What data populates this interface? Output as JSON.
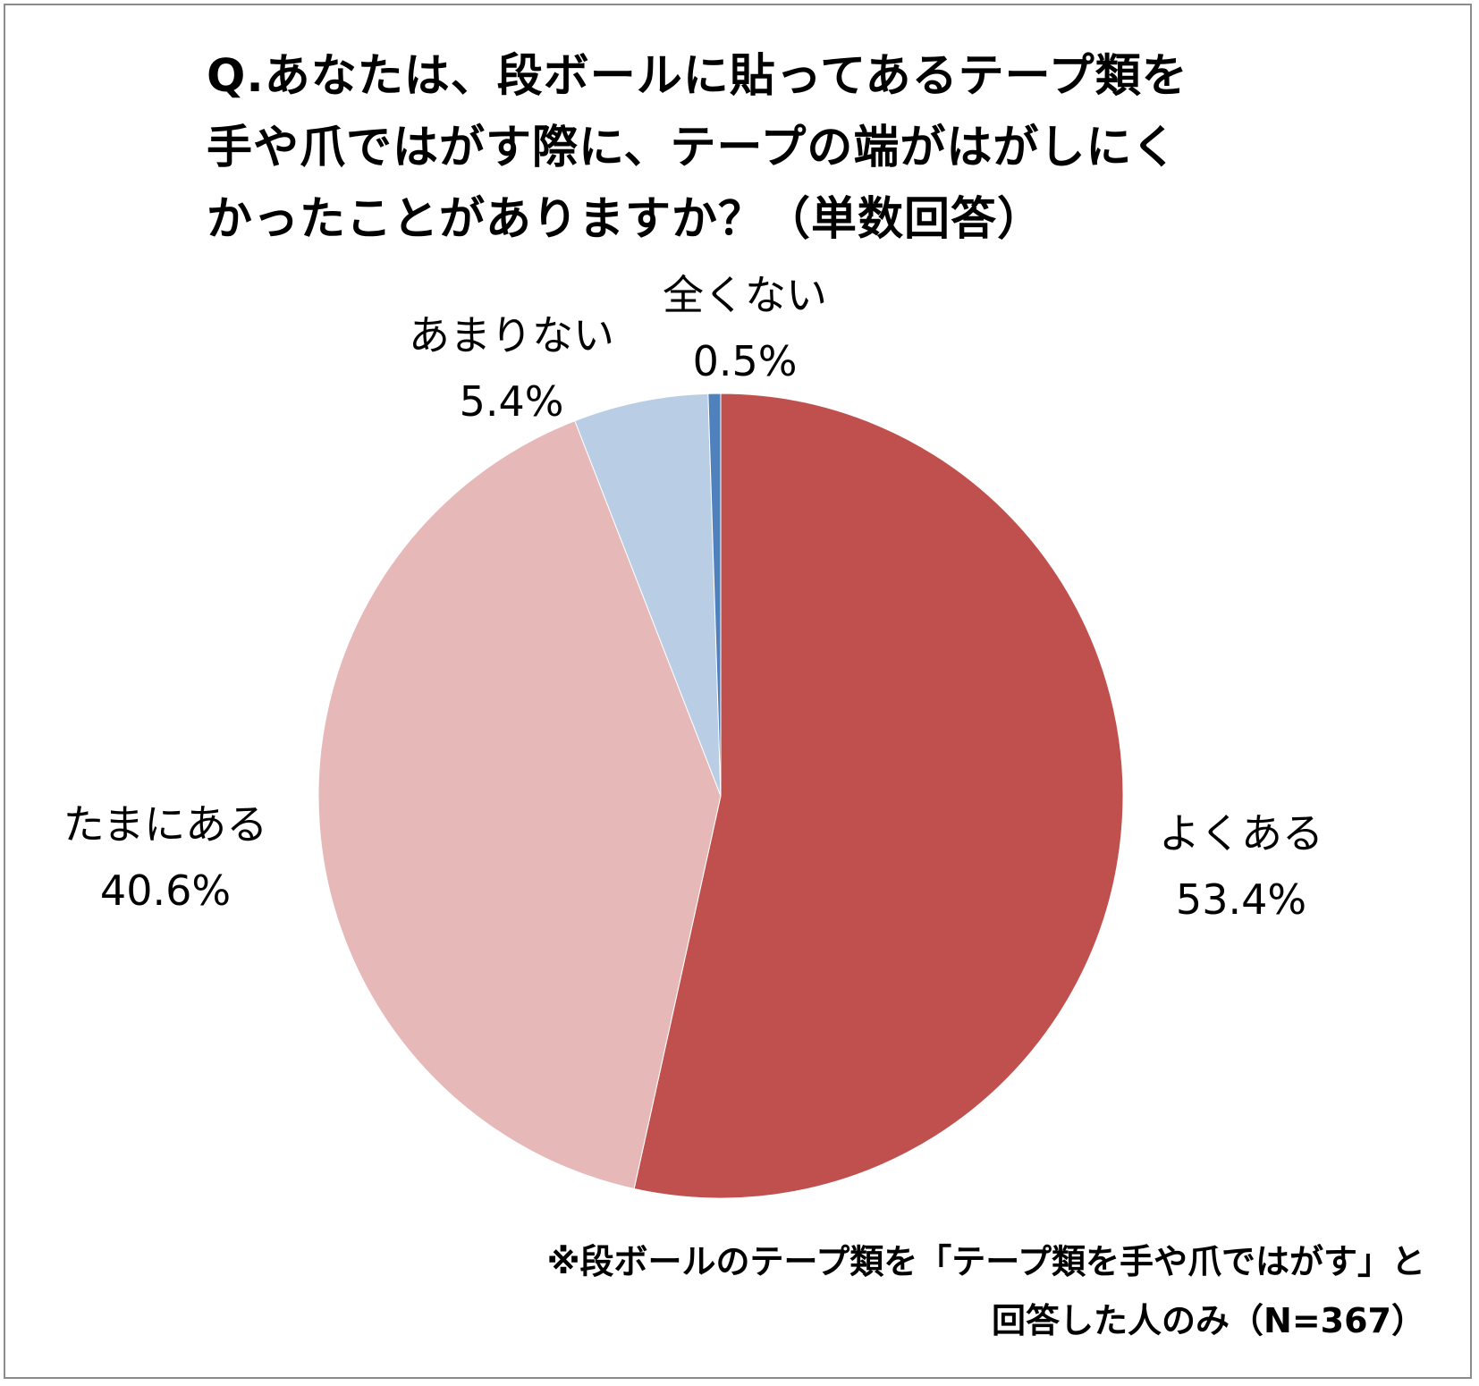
{
  "chart_data": {
    "type": "pie",
    "title_lines": [
      "Q.あなたは、段ボールに貼ってあるテープ類を",
      "手や爪ではがす際に、テープの端がはがしにく",
      "かったことがありますか？（単数回答）"
    ],
    "categories": [
      "よくある",
      "たまにある",
      "あまりない",
      "全くない"
    ],
    "values": [
      53.4,
      40.6,
      5.4,
      0.5
    ],
    "value_labels": [
      "53.4%",
      "40.6%",
      "5.4%",
      "0.5%"
    ],
    "colors": [
      "#c0504d",
      "#e6b9b8",
      "#b9cde5",
      "#4f81bd"
    ],
    "start_angle_deg": 0,
    "direction": "clockwise",
    "legend": "none",
    "note_lines": [
      "※段ボールのテープ類を「テープ類を手や爪ではがす」と",
      "回答した人のみ（N=367）"
    ]
  }
}
